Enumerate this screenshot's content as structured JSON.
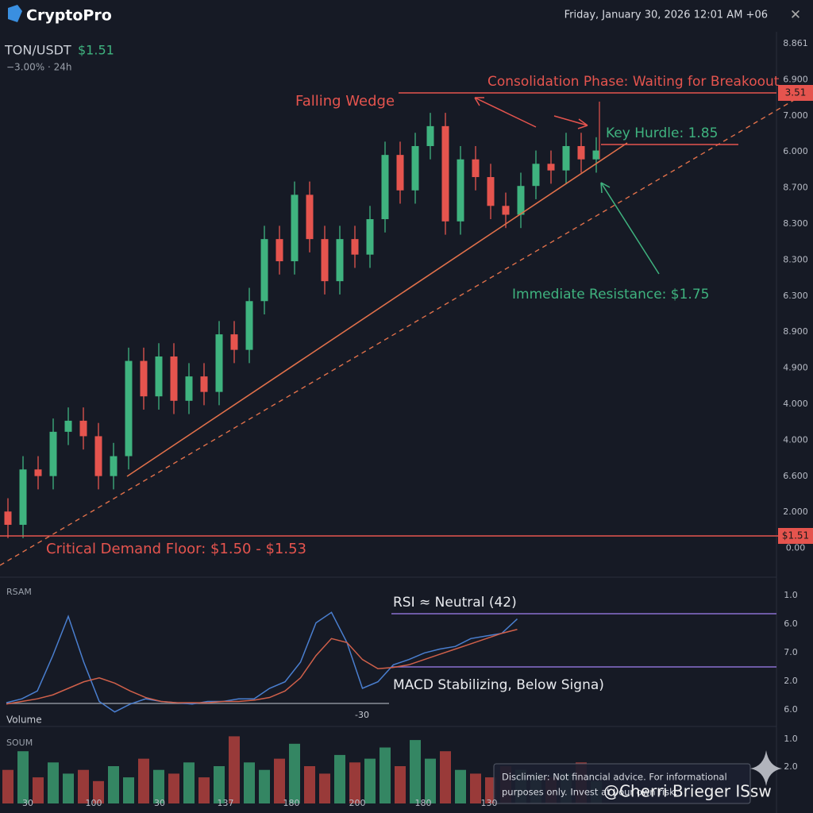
{
  "header": {
    "brand": "CryptoPro",
    "datetime": "Friday, January 30, 2026 12:01 AM  +06",
    "close": "✕"
  },
  "pair": {
    "symbol": "TON/USDT",
    "price": "$1.51",
    "change": "−3.00% · 24h"
  },
  "price_chart": {
    "type": "candlestick",
    "ylim": [
      1.35,
      3.77
    ],
    "axis_labels": [
      "8.861",
      "6.900",
      "7.000",
      "6.000",
      "8.700",
      "8.300",
      "8.300",
      "6.300",
      "8.900",
      "4.900",
      "4.000",
      "4.000",
      "6.600",
      "2.000",
      "0.00"
    ],
    "up_color": "#3fb37f",
    "down_color": "#e5544e",
    "open": [
      1.62,
      1.56,
      1.81,
      1.78,
      1.98,
      2.03,
      1.96,
      1.78,
      1.87,
      2.3,
      2.14,
      2.32,
      2.12,
      2.23,
      2.16,
      2.42,
      2.35,
      2.57,
      2.85,
      2.75,
      3.05,
      2.85,
      2.66,
      2.85,
      2.78,
      2.94,
      3.23,
      3.07,
      3.27,
      3.36,
      2.93,
      3.21,
      3.13,
      3.0,
      2.96,
      3.09,
      3.19,
      3.16,
      3.27,
      3.21
    ],
    "high": [
      1.68,
      1.87,
      1.87,
      2.04,
      2.09,
      2.09,
      2.02,
      1.93,
      2.36,
      2.36,
      2.38,
      2.38,
      2.29,
      2.29,
      2.48,
      2.48,
      2.63,
      2.91,
      2.91,
      3.11,
      3.11,
      2.91,
      2.91,
      2.91,
      3.0,
      3.29,
      3.29,
      3.33,
      3.42,
      3.42,
      3.27,
      3.27,
      3.19,
      3.06,
      3.15,
      3.25,
      3.25,
      3.33,
      3.33,
      3.31
    ],
    "low": [
      1.5,
      1.5,
      1.72,
      1.72,
      1.92,
      1.9,
      1.72,
      1.72,
      1.81,
      2.08,
      2.08,
      2.06,
      2.06,
      2.1,
      2.1,
      2.29,
      2.29,
      2.51,
      2.69,
      2.69,
      2.79,
      2.6,
      2.6,
      2.72,
      2.72,
      2.88,
      3.01,
      3.01,
      3.21,
      2.87,
      2.87,
      3.07,
      2.94,
      2.9,
      2.9,
      3.03,
      3.1,
      3.1,
      3.15,
      3.15
    ],
    "close": [
      1.56,
      1.81,
      1.78,
      1.98,
      2.03,
      1.96,
      1.78,
      1.87,
      2.3,
      2.14,
      2.32,
      2.12,
      2.23,
      2.16,
      2.42,
      2.35,
      2.57,
      2.85,
      2.75,
      3.05,
      2.85,
      2.66,
      2.85,
      2.78,
      2.94,
      3.23,
      3.07,
      3.27,
      3.36,
      2.93,
      3.21,
      3.13,
      3.0,
      2.96,
      3.09,
      3.19,
      3.16,
      3.27,
      3.21,
      3.25
    ]
  },
  "annotations": {
    "consolidation": "Consolidation Phase: Waiting for Breakoout",
    "top_tag": "3.51",
    "falling_wedge": "Falling Wedge",
    "key_hurdle": "Key Hurdle: 1.85",
    "resistance": "Immediate Resistance: $1.75",
    "demand_floor": "Critical Demand Floor: $1.50 - $1.53",
    "floor_tag": "$1.51",
    "rsi_note": "RSI ≈ Neutral (42)",
    "macd_note": "MACD Stabilizing, Below Signa)"
  },
  "indicator_chart": {
    "type": "line",
    "label": "RSAM",
    "ylim": [
      0,
      100
    ],
    "axis_labels": [
      "1.0",
      "6.0",
      "7.0",
      "2.0",
      "6.0"
    ],
    "baseline_label": "-30",
    "series": [
      {
        "color": "#4a7fd0",
        "values": [
          9,
          12,
          18,
          45,
          75,
          40,
          10,
          2,
          8,
          12,
          10,
          9,
          8,
          10,
          10,
          12,
          12,
          20,
          25,
          40,
          70,
          78,
          55,
          20,
          25,
          38,
          42,
          47,
          50,
          52,
          58,
          60,
          62,
          73
        ]
      },
      {
        "color": "#d0604a",
        "values": [
          8,
          10,
          12,
          15,
          20,
          25,
          28,
          24,
          18,
          13,
          10,
          9,
          9,
          9,
          10,
          10,
          11,
          13,
          18,
          28,
          45,
          58,
          55,
          42,
          35,
          36,
          38,
          42,
          46,
          50,
          54,
          58,
          62,
          65
        ]
      }
    ]
  },
  "volume_chart": {
    "type": "bar",
    "label": "Volume",
    "panel_label": "SOUM",
    "ylim": [
      0,
      100
    ],
    "axis_labels": [
      "1.0",
      "2.0"
    ],
    "values": [
      45,
      70,
      35,
      55,
      40,
      45,
      30,
      50,
      35,
      60,
      45,
      40,
      55,
      35,
      50,
      90,
      55,
      45,
      60,
      80,
      50,
      40,
      65,
      55,
      60,
      75,
      50,
      85,
      60,
      70,
      45,
      40,
      35,
      50,
      45,
      40,
      35,
      40,
      55,
      30
    ]
  },
  "x_axis_labels": [
    "30",
    "100",
    "30",
    "137",
    "180",
    "200",
    "180",
    "130"
  ],
  "disclaimer": [
    "Disclimier: Not financial advice. For informational",
    "purposes only. Invest at your own risk."
  ],
  "watermark": "@Cherri Brieger ISsw"
}
